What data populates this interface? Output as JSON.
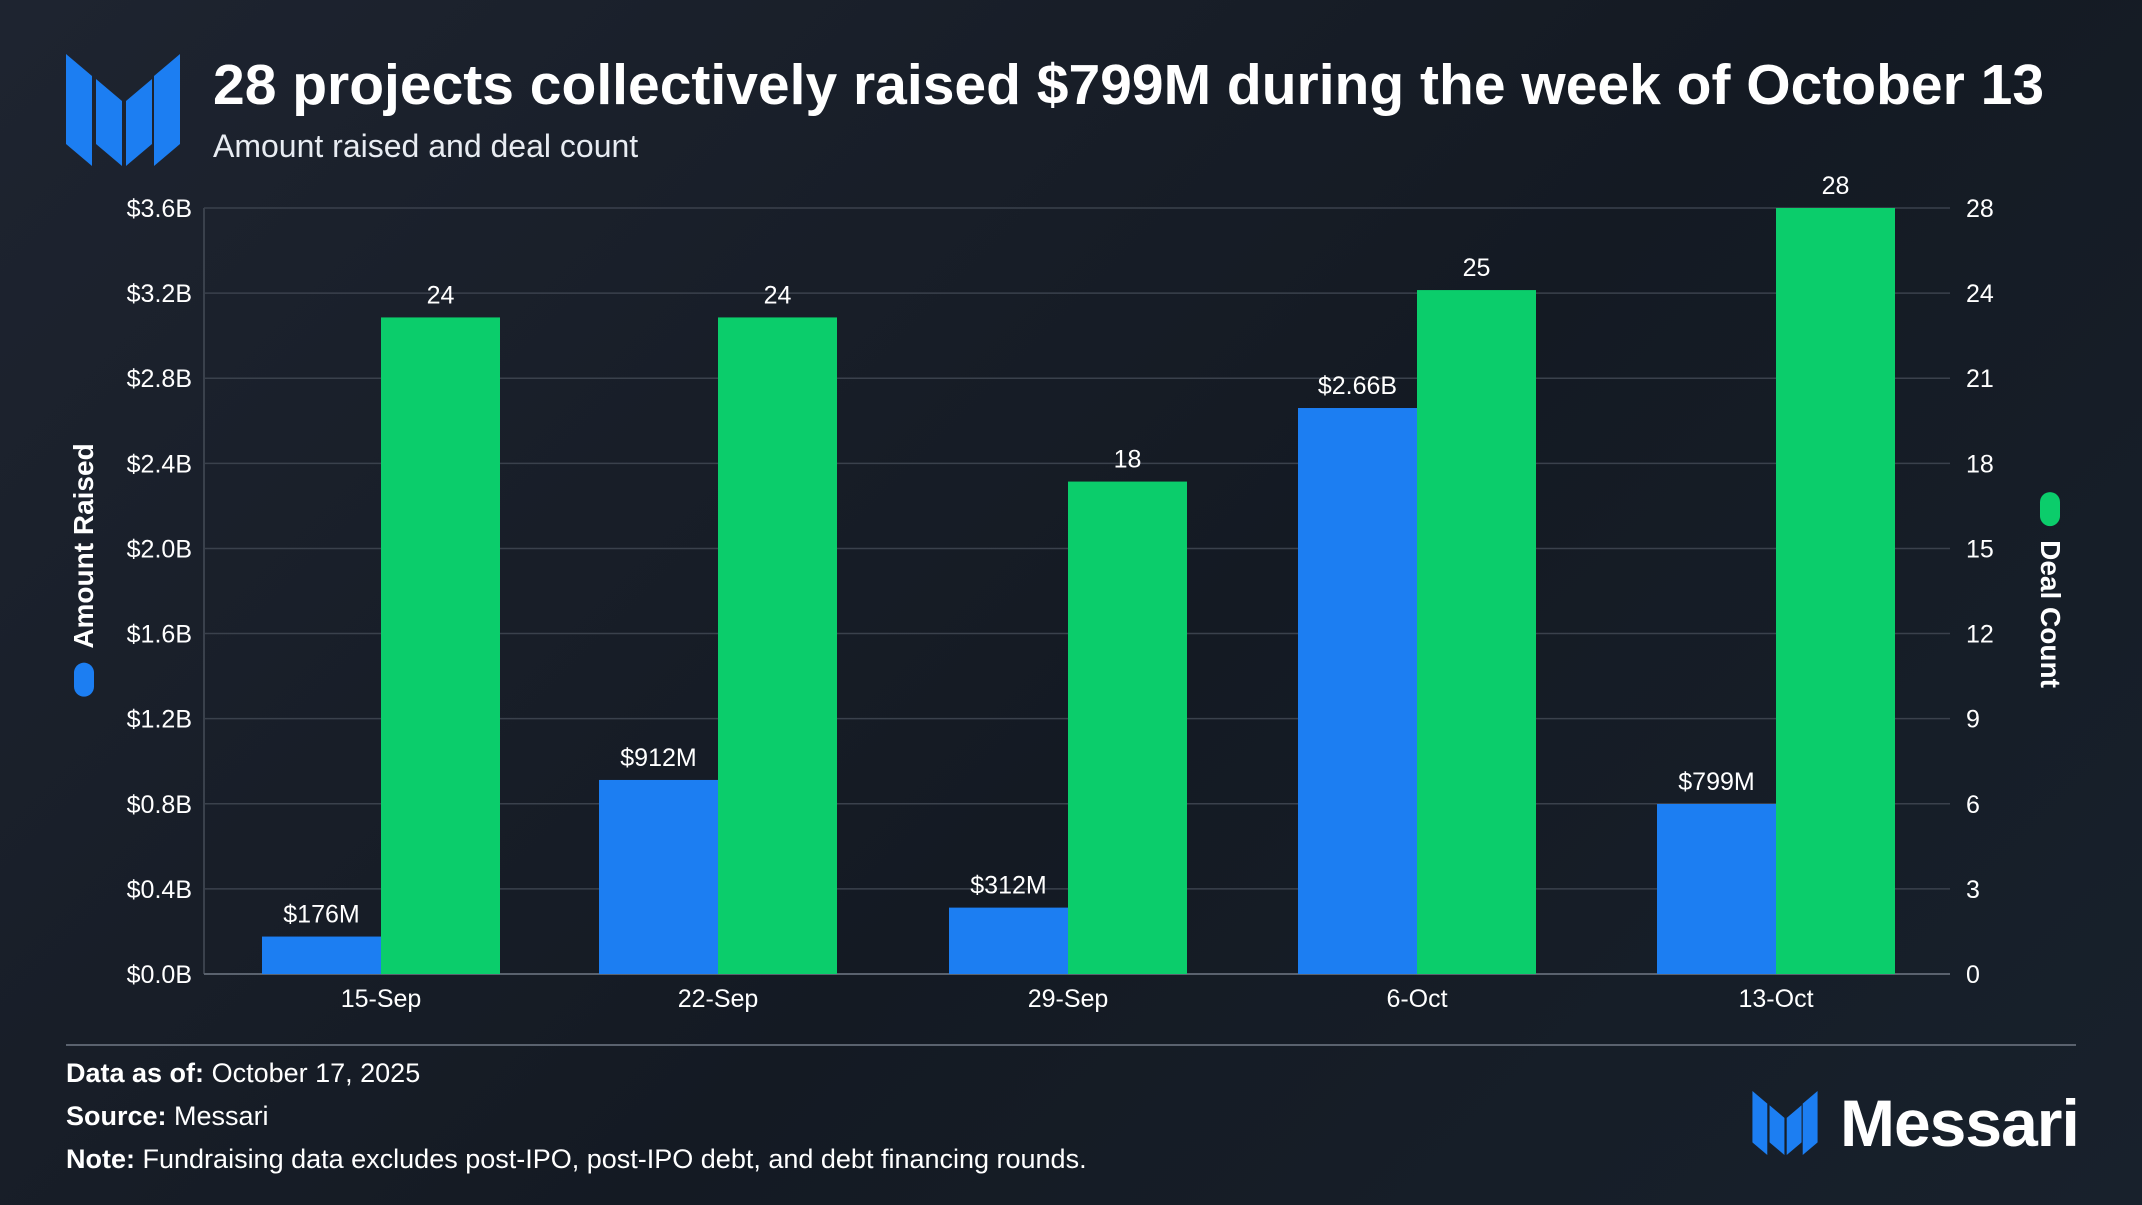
{
  "header": {
    "title": "28 projects collectively raised $799M during the week of October 13",
    "subtitle": "Amount raised and deal count"
  },
  "colors": {
    "amount": "#1c7ef2",
    "deals": "#0bcd6b",
    "grid": "#3a414c"
  },
  "axes": {
    "left_label": "Amount Raised",
    "right_label": "Deal Count",
    "left_ticks": [
      "$0.0B",
      "$0.4B",
      "$0.8B",
      "$1.2B",
      "$1.6B",
      "$2.0B",
      "$2.4B",
      "$2.8B",
      "$3.2B",
      "$3.6B"
    ],
    "right_ticks": [
      "0",
      "3",
      "6",
      "9",
      "12",
      "15",
      "18",
      "21",
      "24",
      "28"
    ]
  },
  "chart_data": {
    "type": "bar",
    "categories": [
      "15-Sep",
      "22-Sep",
      "29-Sep",
      "6-Oct",
      "13-Oct"
    ],
    "series": [
      {
        "name": "Amount Raised",
        "axis": "left",
        "values": [
          0.176,
          0.912,
          0.312,
          2.66,
          0.799
        ],
        "labels": [
          "$176M",
          "$912M",
          "$312M",
          "$2.66B",
          "$799M"
        ]
      },
      {
        "name": "Deal Count",
        "axis": "right",
        "values": [
          24,
          24,
          18,
          25,
          28
        ],
        "labels": [
          "24",
          "24",
          "18",
          "25",
          "28"
        ]
      }
    ],
    "ylim_left": [
      0,
      3.6
    ],
    "ylim_right": [
      0,
      28
    ],
    "grid": true
  },
  "footer": {
    "data_as_of_label": "Data as of:",
    "data_as_of_value": "October 17, 2025",
    "source_label": "Source:",
    "source_value": "Messari",
    "note_label": "Note:",
    "note_value": "Fundraising data excludes post-IPO, post-IPO debt, and debt financing rounds."
  },
  "brand": {
    "name": "Messari",
    "logo_icon": "messari-logo-icon"
  }
}
